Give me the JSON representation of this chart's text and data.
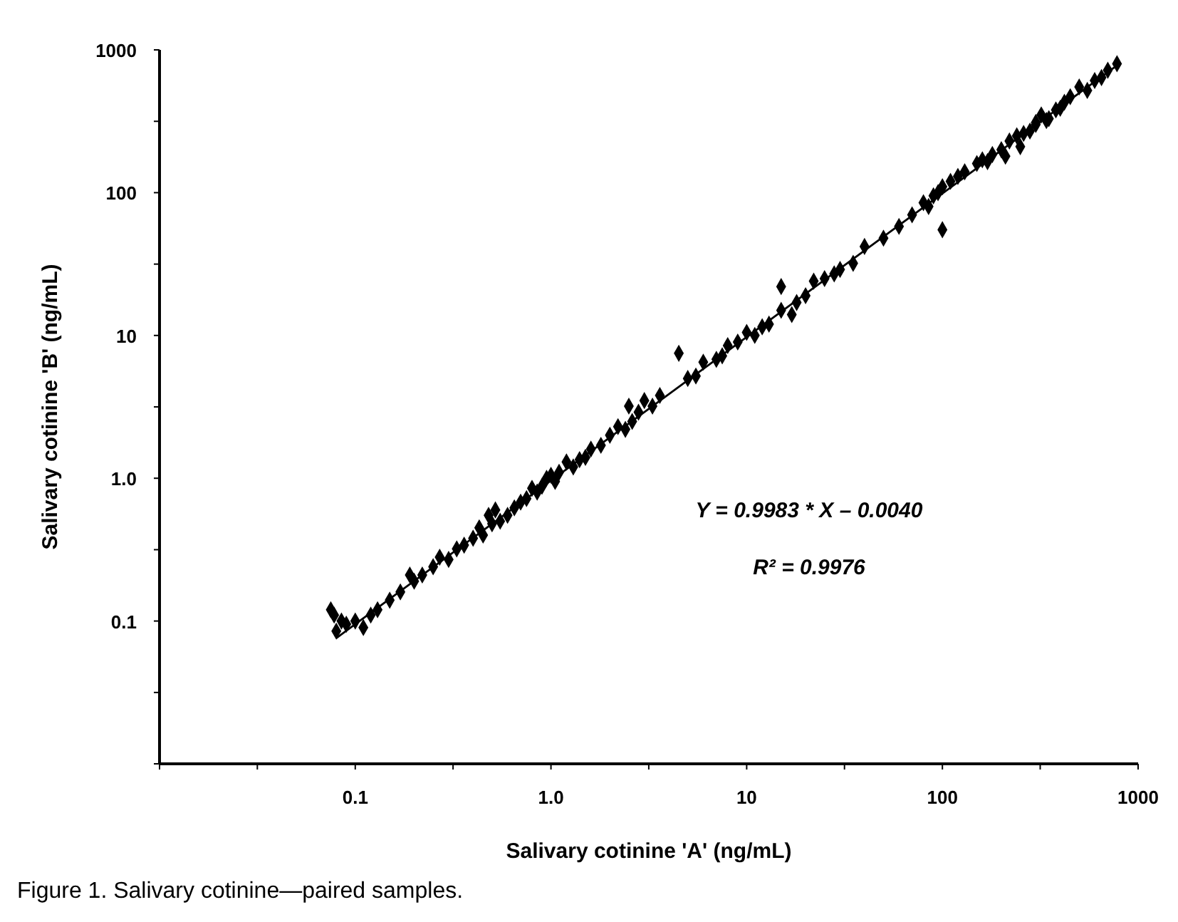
{
  "chart_data": {
    "type": "scatter",
    "xlabel": "Salivary cotinine 'A' (ng/mL)",
    "ylabel": "Salivary cotinine 'B' (ng/mL)",
    "log": "xy",
    "grid": false,
    "xlim": [
      0.01,
      1000
    ],
    "ylim": [
      0.01,
      1000
    ],
    "xticks": [
      {
        "value": 0.01,
        "label": null
      },
      {
        "value": 0.0316,
        "label": null
      },
      {
        "value": 0.1,
        "label": "0.1"
      },
      {
        "value": 0.316,
        "label": null
      },
      {
        "value": 1,
        "label": "1.0"
      },
      {
        "value": 3.16,
        "label": null
      },
      10,
      {
        "value": 31.6,
        "label": null
      },
      100,
      {
        "value": 316,
        "label": null
      },
      1000
    ],
    "yticks": [
      {
        "value": 0.01,
        "label": null
      },
      {
        "value": 0.0316,
        "label": null
      },
      {
        "value": 0.1,
        "label": "0.1"
      },
      {
        "value": 0.316,
        "label": null
      },
      {
        "value": 1,
        "label": "1.0"
      },
      {
        "value": 3.16,
        "label": null
      },
      10,
      {
        "value": 31.6,
        "label": null
      },
      100,
      {
        "value": 316,
        "label": null
      },
      1000
    ],
    "series": [
      {
        "marker": "diamond",
        "color": "#000000",
        "x": [
          0.075,
          0.078,
          0.08,
          0.085,
          0.09,
          0.1,
          0.11,
          0.12,
          0.13,
          0.15,
          0.17,
          0.19,
          0.2,
          0.22,
          0.25,
          0.27,
          0.3,
          0.33,
          0.36,
          0.4,
          0.43,
          0.45,
          0.48,
          0.5,
          0.52,
          0.55,
          0.6,
          0.65,
          0.7,
          0.75,
          0.8,
          0.85,
          0.9,
          0.95,
          1.0,
          1.05,
          1.1,
          1.2,
          1.3,
          1.4,
          1.5,
          1.6,
          1.8,
          2.0,
          2.2,
          2.4,
          2.5,
          2.6,
          2.8,
          3.0,
          3.3,
          3.6,
          4.5,
          5,
          5.5,
          6,
          7,
          7.5,
          8,
          9,
          10,
          11,
          12,
          13,
          15,
          15,
          17,
          18,
          20,
          22,
          25,
          28,
          30,
          35,
          40,
          50,
          60,
          70,
          80,
          85,
          90,
          95,
          100,
          100,
          110,
          120,
          130,
          150,
          160,
          170,
          180,
          200,
          210,
          220,
          240,
          250,
          260,
          280,
          300,
          300,
          320,
          340,
          350,
          380,
          400,
          420,
          450,
          500,
          550,
          600,
          650,
          700,
          780
        ],
        "values": [
          0.12,
          0.11,
          0.085,
          0.1,
          0.095,
          0.1,
          0.09,
          0.11,
          0.12,
          0.14,
          0.16,
          0.21,
          0.19,
          0.21,
          0.24,
          0.28,
          0.27,
          0.32,
          0.34,
          0.38,
          0.45,
          0.4,
          0.55,
          0.48,
          0.6,
          0.5,
          0.55,
          0.62,
          0.68,
          0.72,
          0.85,
          0.8,
          0.88,
          1.0,
          1.05,
          0.95,
          1.1,
          1.3,
          1.2,
          1.35,
          1.4,
          1.6,
          1.7,
          2.0,
          2.3,
          2.2,
          3.2,
          2.5,
          2.9,
          3.5,
          3.2,
          3.8,
          7.5,
          5.0,
          5.2,
          6.5,
          6.8,
          7.2,
          8.5,
          9.0,
          10.5,
          10,
          11.5,
          12,
          22,
          15,
          14,
          17,
          19,
          24,
          25,
          27,
          29,
          32,
          42,
          48,
          58,
          70,
          85,
          80,
          95,
          100,
          55,
          110,
          120,
          130,
          140,
          160,
          170,
          165,
          185,
          200,
          180,
          230,
          250,
          210,
          260,
          270,
          300,
          310,
          350,
          320,
          330,
          380,
          390,
          430,
          470,
          550,
          520,
          610,
          640,
          720,
          800
        ]
      },
      {
        "type": "line",
        "color": "#000000",
        "x": [
          0.08,
          800
        ],
        "values": [
          0.0759,
          798.6
        ]
      }
    ],
    "annotations": [
      "Y = 0.9983 * X – 0.0040",
      "R² = 0.9976",
      "Figure 1. Salivary cotinine—paired samples."
    ]
  }
}
